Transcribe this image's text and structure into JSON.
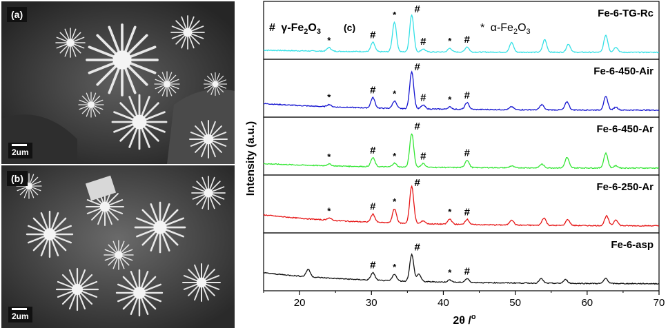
{
  "sem": {
    "a": {
      "label": "(a)",
      "scale": "2um"
    },
    "b": {
      "label": "(b)",
      "scale": "2um"
    }
  },
  "chart_data": {
    "type": "line",
    "panel_label": "(c)",
    "xlabel": "2θ /°",
    "ylabel": "Intensity (a.u.)",
    "xlim": [
      15,
      70
    ],
    "xticks": [
      20,
      30,
      40,
      50,
      60,
      70
    ],
    "legend_gamma": "# γ-Fe2O3",
    "legend_alpha": "* α-Fe2O3",
    "grid": false,
    "series": [
      {
        "name": "Fe-6-TG-Rc",
        "color": "#33e0e6",
        "peaks": [
          [
            24.1,
            0.1
          ],
          [
            30.2,
            0.25
          ],
          [
            33.2,
            0.8
          ],
          [
            35.6,
            1.0
          ],
          [
            37.2,
            0.08
          ],
          [
            40.9,
            0.1
          ],
          [
            43.3,
            0.14
          ],
          [
            49.5,
            0.26
          ],
          [
            54.1,
            0.34
          ],
          [
            57.4,
            0.22
          ],
          [
            62.6,
            0.46
          ],
          [
            64.0,
            0.14
          ]
        ],
        "baseline": 0.06,
        "markers": [
          {
            "symbol": "*",
            "x": 24.1
          },
          {
            "symbol": "#",
            "x": 30.2
          },
          {
            "symbol": "*",
            "x": 33.2
          },
          {
            "symbol": "#",
            "x": 35.6
          },
          {
            "symbol": "#",
            "x": 37.2
          },
          {
            "symbol": "*",
            "x": 40.9
          },
          {
            "symbol": "#",
            "x": 43.3
          }
        ]
      },
      {
        "name": "Fe-6-450-Air",
        "color": "#1414d0",
        "peaks": [
          [
            24.1,
            0.06
          ],
          [
            30.2,
            0.28
          ],
          [
            33.2,
            0.2
          ],
          [
            35.6,
            1.0
          ],
          [
            37.2,
            0.1
          ],
          [
            40.9,
            0.06
          ],
          [
            43.3,
            0.18
          ],
          [
            49.5,
            0.08
          ],
          [
            53.7,
            0.14
          ],
          [
            57.2,
            0.22
          ],
          [
            62.6,
            0.36
          ],
          [
            64.0,
            0.08
          ]
        ],
        "baseline": 0.18,
        "markers": [
          {
            "symbol": "*",
            "x": 24.1
          },
          {
            "symbol": "#",
            "x": 30.2
          },
          {
            "symbol": "*",
            "x": 33.2
          },
          {
            "symbol": "#",
            "x": 35.6
          },
          {
            "symbol": "#",
            "x": 37.2
          },
          {
            "symbol": "*",
            "x": 40.9
          },
          {
            "symbol": "#",
            "x": 43.3
          }
        ]
      },
      {
        "name": "Fe-6-450-Ar",
        "color": "#33e633",
        "peaks": [
          [
            24.1,
            0.05
          ],
          [
            30.2,
            0.24
          ],
          [
            33.2,
            0.1
          ],
          [
            35.6,
            0.9
          ],
          [
            37.2,
            0.1
          ],
          [
            43.3,
            0.2
          ],
          [
            49.5,
            0.05
          ],
          [
            53.7,
            0.1
          ],
          [
            57.2,
            0.28
          ],
          [
            62.6,
            0.4
          ],
          [
            64.0,
            0.06
          ]
        ],
        "baseline": 0.12,
        "markers": [
          {
            "symbol": "*",
            "x": 24.1
          },
          {
            "symbol": "#",
            "x": 30.2
          },
          {
            "symbol": "*",
            "x": 33.2
          },
          {
            "symbol": "#",
            "x": 35.6
          },
          {
            "symbol": "#",
            "x": 37.2
          },
          {
            "symbol": "#",
            "x": 43.3
          }
        ]
      },
      {
        "name": "Fe-6-250-Ar",
        "color": "#e61414",
        "peaks": [
          [
            24.1,
            0.06
          ],
          [
            30.2,
            0.22
          ],
          [
            33.2,
            0.38
          ],
          [
            35.6,
            1.0
          ],
          [
            37.2,
            0.08
          ],
          [
            40.9,
            0.14
          ],
          [
            43.3,
            0.14
          ],
          [
            49.5,
            0.14
          ],
          [
            54.0,
            0.2
          ],
          [
            57.3,
            0.16
          ],
          [
            62.7,
            0.26
          ],
          [
            64.0,
            0.16
          ]
        ],
        "baseline": 0.3,
        "markers": [
          {
            "symbol": "*",
            "x": 24.1
          },
          {
            "symbol": "#",
            "x": 30.2
          },
          {
            "symbol": "*",
            "x": 33.2
          },
          {
            "symbol": "#",
            "x": 35.6
          },
          {
            "symbol": "*",
            "x": 40.9
          },
          {
            "symbol": "#",
            "x": 43.3
          }
        ]
      },
      {
        "name": "Fe-6-asp",
        "color": "#111111",
        "peaks": [
          [
            21.2,
            0.2
          ],
          [
            30.2,
            0.2
          ],
          [
            33.2,
            0.18
          ],
          [
            35.6,
            0.72
          ],
          [
            36.6,
            0.2
          ],
          [
            40.9,
            0.06
          ],
          [
            43.3,
            0.1
          ],
          [
            53.6,
            0.12
          ],
          [
            57.0,
            0.1
          ],
          [
            62.6,
            0.14
          ]
        ],
        "baseline": 0.3,
        "markers": [
          {
            "symbol": "#",
            "x": 30.2
          },
          {
            "symbol": "*",
            "x": 33.2
          },
          {
            "symbol": "#",
            "x": 35.6
          },
          {
            "symbol": "*",
            "x": 40.9
          },
          {
            "symbol": "#",
            "x": 43.3
          }
        ]
      }
    ]
  }
}
